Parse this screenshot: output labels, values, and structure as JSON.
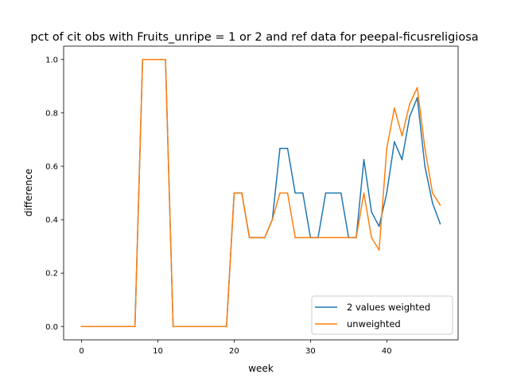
{
  "chart_data": {
    "type": "line",
    "title": "pct of cit obs with Fruits_unripe = 1 or 2 and ref data for peepal-ficusreligiosa",
    "xlabel": "week",
    "ylabel": "difference",
    "xlim": [
      -2.35,
      49.35
    ],
    "ylim": [
      -0.05,
      1.05
    ],
    "x_ticks": [
      0,
      10,
      20,
      30,
      40
    ],
    "x_tick_labels": [
      "0",
      "10",
      "20",
      "30",
      "40"
    ],
    "y_ticks": [
      0.0,
      0.2,
      0.4,
      0.6,
      0.8,
      1.0
    ],
    "y_tick_labels": [
      "0.0",
      "0.2",
      "0.4",
      "0.6",
      "0.8",
      "1.0"
    ],
    "grid": false,
    "legend_position": "lower-right",
    "x": [
      0,
      1,
      2,
      3,
      4,
      5,
      6,
      7,
      8,
      9,
      10,
      11,
      12,
      13,
      14,
      15,
      16,
      17,
      18,
      19,
      20,
      21,
      22,
      23,
      24,
      25,
      26,
      27,
      28,
      29,
      30,
      31,
      32,
      33,
      34,
      35,
      36,
      37,
      38,
      39,
      40,
      41,
      42,
      43,
      44,
      45,
      46,
      47
    ],
    "series": [
      {
        "name": "2 values weighted",
        "color": "#1f77b4",
        "values": [
          0,
          0,
          0,
          0,
          0,
          0,
          0,
          0,
          1,
          1,
          1,
          1,
          0,
          0,
          0,
          0,
          0,
          0,
          0,
          0,
          0.5,
          0.5,
          0.333,
          0.333,
          0.333,
          0.4,
          0.667,
          0.667,
          0.5,
          0.5,
          0.333,
          0.333,
          0.5,
          0.5,
          0.5,
          0.333,
          0.333,
          0.625,
          0.429,
          0.375,
          0.5,
          0.692,
          0.625,
          0.786,
          0.857,
          0.6,
          0.462,
          0.385
        ]
      },
      {
        "name": "unweighted",
        "color": "#ff7f0e",
        "values": [
          0,
          0,
          0,
          0,
          0,
          0,
          0,
          0,
          1,
          1,
          1,
          1,
          0,
          0,
          0,
          0,
          0,
          0,
          0,
          0,
          0.5,
          0.5,
          0.333,
          0.333,
          0.333,
          0.4,
          0.5,
          0.5,
          0.333,
          0.333,
          0.333,
          0.333,
          0.333,
          0.333,
          0.333,
          0.333,
          0.333,
          0.5,
          0.333,
          0.286,
          0.667,
          0.818,
          0.714,
          0.833,
          0.895,
          0.667,
          0.5,
          0.455
        ]
      }
    ]
  }
}
